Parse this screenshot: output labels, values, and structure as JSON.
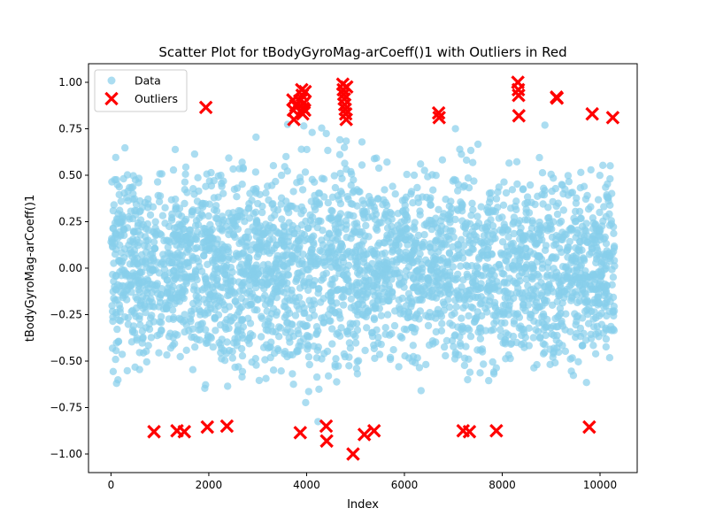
{
  "chart_data": {
    "type": "scatter",
    "title": "Scatter Plot for tBodyGyroMag-arCoeff()1 with Outliers in Red",
    "xlabel": "Index",
    "ylabel": "tBodyGyroMag-arCoeff()1",
    "xlim": [
      -460,
      10760
    ],
    "ylim": [
      -1.1,
      1.1
    ],
    "x_ticks": [
      0,
      2000,
      4000,
      6000,
      8000,
      10000
    ],
    "x_tick_labels": [
      "0",
      "2000",
      "4000",
      "6000",
      "8000",
      "10000"
    ],
    "y_ticks": [
      -1.0,
      -0.75,
      -0.5,
      -0.25,
      0.0,
      0.25,
      0.5,
      0.75,
      1.0
    ],
    "y_tick_labels": [
      "−1.00",
      "−0.75",
      "−0.50",
      "−0.25",
      "0.00",
      "0.25",
      "0.50",
      "0.75",
      "1.00"
    ],
    "grid": false,
    "legend_position": "upper-left",
    "legend": [
      "Data",
      "Outliers"
    ],
    "colors": {
      "data": "#87ceeb",
      "outliers": "#ff0000",
      "axes": "#000000"
    },
    "series": [
      {
        "name": "Data",
        "marker": "circle",
        "count": 10299,
        "x_range": [
          0,
          10298
        ],
        "y_range": [
          -0.84,
          0.78
        ],
        "distribution": "dense band around y=0, spread roughly -0.6 to 0.6 with sparse extremes"
      },
      {
        "name": "Outliers",
        "marker": "x",
        "points": [
          {
            "x": 880,
            "y": -0.88
          },
          {
            "x": 1350,
            "y": -0.875
          },
          {
            "x": 1500,
            "y": -0.88
          },
          {
            "x": 1940,
            "y": 0.865
          },
          {
            "x": 1970,
            "y": -0.855
          },
          {
            "x": 2370,
            "y": -0.85
          },
          {
            "x": 3720,
            "y": 0.905
          },
          {
            "x": 3730,
            "y": 0.85
          },
          {
            "x": 3740,
            "y": 0.8
          },
          {
            "x": 3780,
            "y": 0.875
          },
          {
            "x": 3860,
            "y": 0.9
          },
          {
            "x": 3870,
            "y": -0.885
          },
          {
            "x": 3900,
            "y": 0.96
          },
          {
            "x": 3910,
            "y": 0.93
          },
          {
            "x": 3920,
            "y": 0.83
          },
          {
            "x": 3930,
            "y": 0.86
          },
          {
            "x": 3950,
            "y": 0.89
          },
          {
            "x": 3960,
            "y": 0.85
          },
          {
            "x": 3970,
            "y": 0.95
          },
          {
            "x": 4400,
            "y": -0.85
          },
          {
            "x": 4410,
            "y": -0.93
          },
          {
            "x": 4740,
            "y": 0.99
          },
          {
            "x": 4750,
            "y": 0.96
          },
          {
            "x": 4760,
            "y": 0.935
          },
          {
            "x": 4770,
            "y": 0.91
          },
          {
            "x": 4780,
            "y": 0.88
          },
          {
            "x": 4790,
            "y": 0.855
          },
          {
            "x": 4800,
            "y": 0.83
          },
          {
            "x": 4810,
            "y": 0.8
          },
          {
            "x": 4820,
            "y": 0.975
          },
          {
            "x": 4950,
            "y": -1.0
          },
          {
            "x": 5180,
            "y": -0.895
          },
          {
            "x": 5380,
            "y": -0.875
          },
          {
            "x": 6700,
            "y": 0.835
          },
          {
            "x": 6710,
            "y": 0.81
          },
          {
            "x": 7200,
            "y": -0.875
          },
          {
            "x": 7330,
            "y": -0.88
          },
          {
            "x": 7880,
            "y": -0.875
          },
          {
            "x": 8320,
            "y": 1.0
          },
          {
            "x": 8330,
            "y": 0.96
          },
          {
            "x": 8335,
            "y": 0.93
          },
          {
            "x": 8340,
            "y": 0.82
          },
          {
            "x": 9110,
            "y": 0.92
          },
          {
            "x": 9120,
            "y": 0.915
          },
          {
            "x": 9780,
            "y": -0.855
          },
          {
            "x": 9840,
            "y": 0.83
          },
          {
            "x": 10260,
            "y": 0.81
          }
        ]
      }
    ]
  }
}
